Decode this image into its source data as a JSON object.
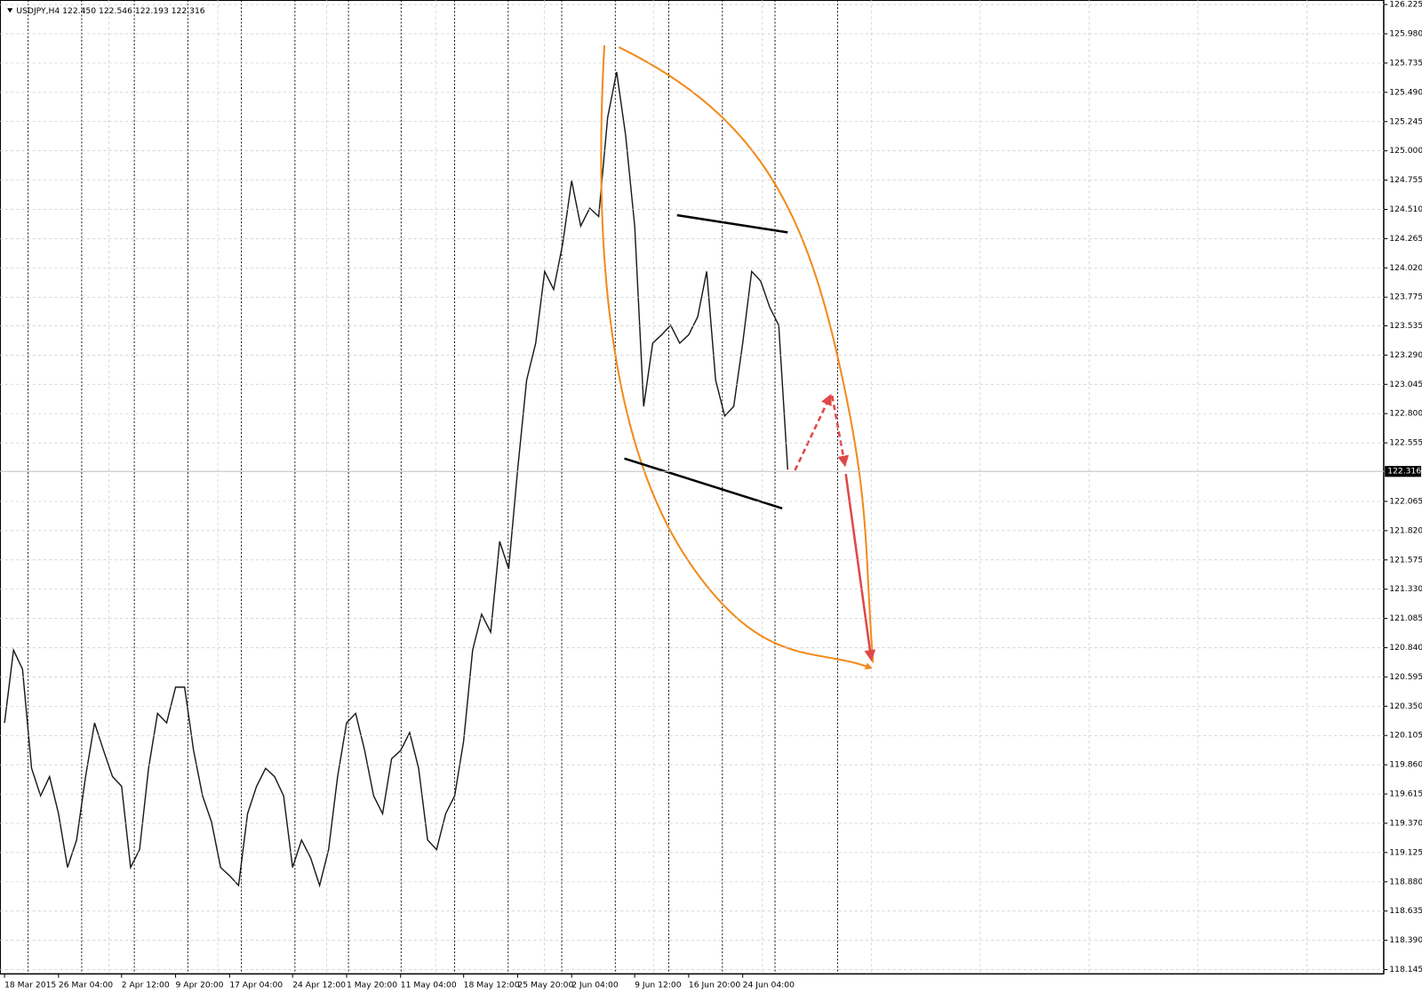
{
  "chart_data": {
    "type": "line",
    "title": "USDJPY,H4  122.450 122.546 122.193 122.316",
    "current_price": {
      "value": 122.316,
      "label": "122.316"
    },
    "color": "#1a1a1a",
    "grid": true,
    "ylim": [
      118.145,
      126.225
    ],
    "yticks": [
      {
        "value": 126.225,
        "label": "126.225"
      },
      {
        "value": 125.98,
        "label": "125.980"
      },
      {
        "value": 125.735,
        "label": "125.735"
      },
      {
        "value": 125.49,
        "label": "125.490"
      },
      {
        "value": 125.245,
        "label": "125.245"
      },
      {
        "value": 125.0,
        "label": "125.000"
      },
      {
        "value": 124.755,
        "label": "124.755"
      },
      {
        "value": 124.51,
        "label": "124.510"
      },
      {
        "value": 124.265,
        "label": "124.265"
      },
      {
        "value": 124.02,
        "label": "124.020"
      },
      {
        "value": 123.775,
        "label": "123.775"
      },
      {
        "value": 123.535,
        "label": "123.535"
      },
      {
        "value": 123.29,
        "label": "123.290"
      },
      {
        "value": 123.045,
        "label": "123.045"
      },
      {
        "value": 122.8,
        "label": "122.800"
      },
      {
        "value": 122.555,
        "label": "122.555"
      },
      {
        "value": 122.065,
        "label": "122.065"
      },
      {
        "value": 121.82,
        "label": "121.820"
      },
      {
        "value": 121.575,
        "label": "121.575"
      },
      {
        "value": 121.33,
        "label": "121.330"
      },
      {
        "value": 121.085,
        "label": "121.085"
      },
      {
        "value": 120.84,
        "label": "120.840"
      },
      {
        "value": 120.595,
        "label": "120.595"
      },
      {
        "value": 120.35,
        "label": "120.350"
      },
      {
        "value": 120.105,
        "label": "120.105"
      },
      {
        "value": 119.86,
        "label": "119.860"
      },
      {
        "value": 119.615,
        "label": "119.615"
      },
      {
        "value": 119.37,
        "label": "119.370"
      },
      {
        "value": 119.125,
        "label": "119.125"
      },
      {
        "value": 118.88,
        "label": "118.880"
      },
      {
        "value": 118.635,
        "label": "118.635"
      },
      {
        "value": 118.39,
        "label": "118.390"
      },
      {
        "value": 118.145,
        "label": "118.145"
      }
    ],
    "categories": [
      "18 Mar 2015",
      null,
      null,
      null,
      null,
      null,
      "26 Mar 04:00",
      null,
      null,
      null,
      null,
      null,
      null,
      "2 Apr 12:00",
      null,
      null,
      null,
      null,
      null,
      "9 Apr 20:00",
      null,
      null,
      null,
      null,
      null,
      "17 Apr 04:00",
      null,
      null,
      null,
      null,
      null,
      null,
      "24 Apr 12:00",
      null,
      null,
      null,
      null,
      null,
      "1 May 20:00",
      null,
      null,
      null,
      null,
      null,
      "11 May 04:00",
      null,
      null,
      null,
      null,
      null,
      null,
      "18 May 12:00",
      null,
      null,
      null,
      null,
      null,
      "25 May 20:00",
      null,
      null,
      null,
      null,
      null,
      "2 Jun 04:00",
      null,
      null,
      null,
      null,
      null,
      null,
      "9 Jun 12:00",
      null,
      null,
      null,
      null,
      null,
      "16 Jun 20:00",
      null,
      null,
      null,
      null,
      null,
      "24 Jun 04:00",
      null,
      null,
      null,
      null,
      null
    ],
    "values": [
      120.21,
      120.82,
      120.66,
      119.83,
      119.6,
      119.76,
      119.45,
      119.0,
      119.23,
      119.76,
      120.21,
      119.98,
      119.76,
      119.68,
      119.0,
      119.15,
      119.83,
      120.29,
      120.21,
      120.51,
      120.51,
      119.98,
      119.6,
      119.38,
      119.0,
      118.93,
      118.85,
      119.45,
      119.68,
      119.83,
      119.76,
      119.6,
      119.0,
      119.23,
      119.08,
      118.85,
      119.15,
      119.76,
      120.21,
      120.29,
      119.98,
      119.6,
      119.45,
      119.91,
      119.98,
      120.13,
      119.83,
      119.23,
      119.15,
      119.45,
      119.6,
      120.06,
      120.82,
      121.12,
      120.97,
      121.73,
      121.5,
      122.33,
      123.08,
      123.39,
      123.99,
      123.84,
      124.22,
      124.75,
      124.37,
      124.52,
      124.45,
      125.28,
      125.66,
      125.13,
      124.37,
      122.86,
      123.39,
      123.46,
      123.54,
      123.39,
      123.46,
      123.61,
      123.99,
      123.08,
      122.78,
      122.86,
      123.39,
      123.99,
      123.91,
      123.69,
      123.54,
      122.33
    ]
  }
}
